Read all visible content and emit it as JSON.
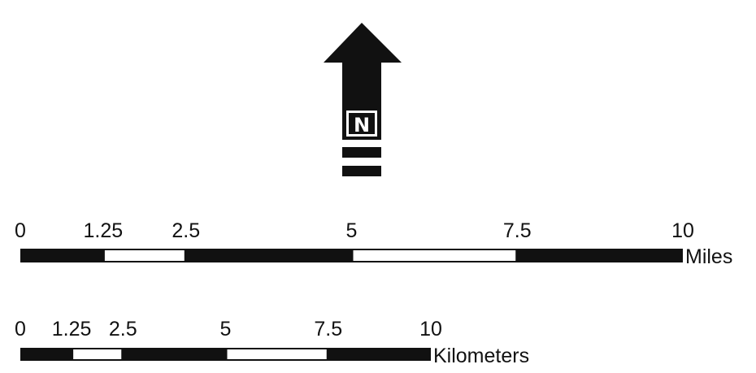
{
  "north_arrow": {
    "letter": "N",
    "color": "#111111"
  },
  "scale_bars": [
    {
      "unit": "Miles",
      "ticks": [
        "0",
        "1.25",
        "2.5",
        "5",
        "7.5",
        "10"
      ],
      "values": [
        0,
        1.25,
        2.5,
        5,
        7.5,
        10
      ],
      "segment_fills": [
        "black",
        "white",
        "black",
        "white",
        "black"
      ]
    },
    {
      "unit": "Kilometers",
      "ticks": [
        "0",
        "1.25",
        "2.5",
        "5",
        "7.5",
        "10"
      ],
      "values": [
        0,
        1.25,
        2.5,
        5,
        7.5,
        10
      ],
      "segment_fills": [
        "black",
        "white",
        "black",
        "white",
        "black"
      ]
    }
  ],
  "colors": {
    "ink": "#111111",
    "background": "#ffffff"
  }
}
